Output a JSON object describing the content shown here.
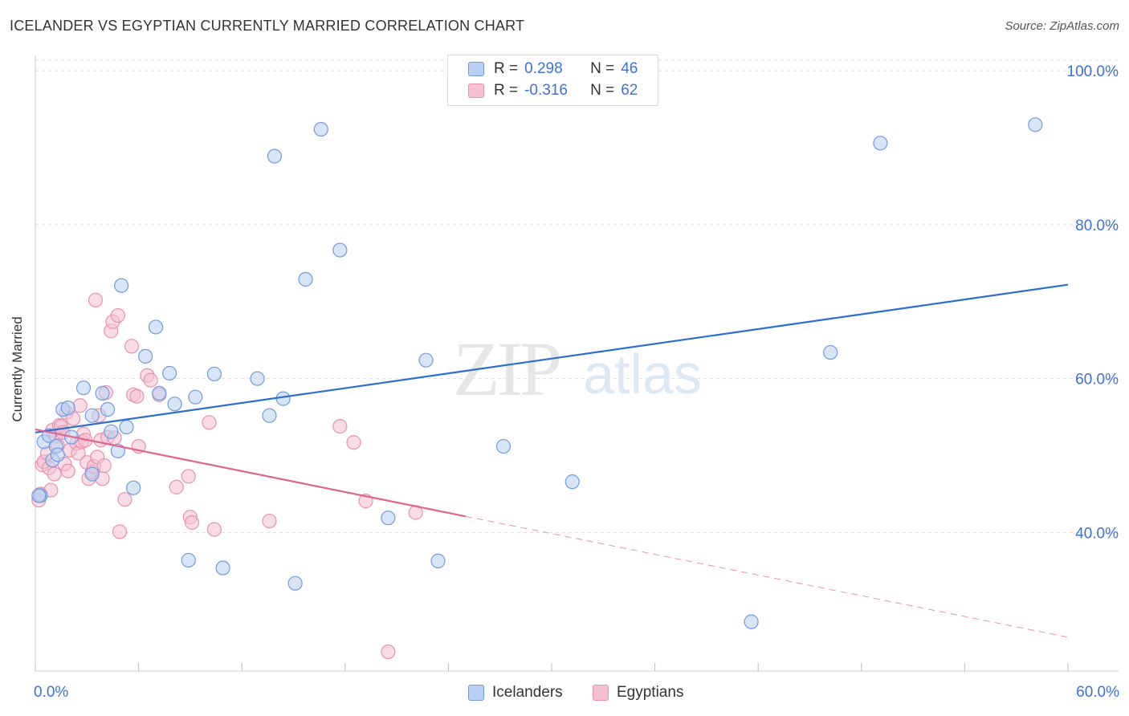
{
  "title": "ICELANDER VS EGYPTIAN CURRENTLY MARRIED CORRELATION CHART",
  "source": "Source: ZipAtlas.com",
  "watermark": {
    "zip": "ZIP",
    "atlas": "atlas"
  },
  "legend_top": [
    {
      "r_label": "R =",
      "r_value": "0.298",
      "n_label": "N =",
      "n_value": "46"
    },
    {
      "r_label": "R =",
      "r_value": "-0.316",
      "n_label": "N =",
      "n_value": "62"
    }
  ],
  "colors": {
    "blue_fill": "#b8d0f4",
    "blue_stroke": "#6f9be0",
    "blue_line": "#2d6fd0",
    "pink_fill": "#f6c0d2",
    "pink_stroke": "#e892b0",
    "pink_line": "#e0648e",
    "tick_text": "#3a72d6",
    "grid": "#dddddd"
  },
  "chart_data": {
    "type": "scatter",
    "title": "ICELANDER VS EGYPTIAN CURRENTLY MARRIED CORRELATION CHART",
    "xlabel": "",
    "ylabel": "Currently Married",
    "xlim": [
      0,
      60
    ],
    "ylim": [
      22,
      102
    ],
    "x_tick_labels": [
      "0.0%",
      "60.0%"
    ],
    "y_ticks": [
      40,
      60,
      80,
      100
    ],
    "y_tick_labels": [
      "40.0%",
      "60.0%",
      "80.0%",
      "100.0%"
    ],
    "legend": [
      "Icelanders",
      "Egyptians"
    ],
    "series": [
      {
        "name": "Icelanders",
        "color": "blue",
        "trend": {
          "x": [
            0,
            60
          ],
          "y": [
            53.0,
            72.2
          ]
        },
        "points": [
          [
            0.3,
            44.8
          ],
          [
            0.5,
            51.8
          ],
          [
            0.8,
            52.6
          ],
          [
            1.0,
            49.4
          ],
          [
            1.2,
            51.2
          ],
          [
            1.3,
            50.1
          ],
          [
            1.6,
            56.0
          ],
          [
            1.9,
            56.2
          ],
          [
            2.1,
            52.4
          ],
          [
            2.8,
            58.8
          ],
          [
            3.3,
            47.6
          ],
          [
            3.3,
            55.2
          ],
          [
            3.9,
            58.1
          ],
          [
            4.2,
            56.0
          ],
          [
            4.4,
            53.1
          ],
          [
            4.8,
            50.6
          ],
          [
            5.0,
            72.1
          ],
          [
            5.3,
            53.7
          ],
          [
            5.7,
            45.8
          ],
          [
            6.4,
            62.9
          ],
          [
            7.0,
            66.7
          ],
          [
            7.2,
            58.1
          ],
          [
            7.8,
            60.7
          ],
          [
            8.1,
            56.7
          ],
          [
            8.9,
            36.4
          ],
          [
            9.3,
            57.6
          ],
          [
            10.4,
            60.6
          ],
          [
            10.9,
            35.4
          ],
          [
            12.9,
            60.0
          ],
          [
            13.6,
            55.2
          ],
          [
            13.9,
            88.9
          ],
          [
            14.4,
            57.4
          ],
          [
            15.1,
            33.4
          ],
          [
            15.7,
            72.9
          ],
          [
            16.6,
            92.4
          ],
          [
            17.7,
            76.7
          ],
          [
            20.5,
            41.9
          ],
          [
            22.7,
            62.4
          ],
          [
            23.4,
            36.3
          ],
          [
            27.2,
            51.2
          ],
          [
            31.2,
            46.6
          ],
          [
            41.6,
            28.4
          ],
          [
            46.2,
            63.4
          ],
          [
            49.1,
            90.6
          ],
          [
            58.1,
            93.0
          ],
          [
            0.2,
            44.8
          ]
        ]
      },
      {
        "name": "Egyptians",
        "color": "pink",
        "trend": {
          "x": [
            0,
            25
          ],
          "y": [
            53.4,
            42.1
          ]
        },
        "trend_dashed": {
          "x": [
            25,
            60
          ],
          "y": [
            42.1,
            26.4
          ]
        },
        "points": [
          [
            0.2,
            44.2
          ],
          [
            0.3,
            45.0
          ],
          [
            0.4,
            48.8
          ],
          [
            0.5,
            49.2
          ],
          [
            0.7,
            50.3
          ],
          [
            0.8,
            48.4
          ],
          [
            0.9,
            45.5
          ],
          [
            1.0,
            53.3
          ],
          [
            1.1,
            47.6
          ],
          [
            1.2,
            52.5
          ],
          [
            1.3,
            51.3
          ],
          [
            1.4,
            53.9
          ],
          [
            1.5,
            53.8
          ],
          [
            1.6,
            53.0
          ],
          [
            1.7,
            48.9
          ],
          [
            1.8,
            55.6
          ],
          [
            1.9,
            48.0
          ],
          [
            2.0,
            50.7
          ],
          [
            2.2,
            54.8
          ],
          [
            2.4,
            51.6
          ],
          [
            2.5,
            50.3
          ],
          [
            2.6,
            56.5
          ],
          [
            2.7,
            51.8
          ],
          [
            2.8,
            52.8
          ],
          [
            2.9,
            52.0
          ],
          [
            3.0,
            49.1
          ],
          [
            3.1,
            47.0
          ],
          [
            3.3,
            47.9
          ],
          [
            3.4,
            48.6
          ],
          [
            3.5,
            70.2
          ],
          [
            3.6,
            49.8
          ],
          [
            3.7,
            55.2
          ],
          [
            3.8,
            52.0
          ],
          [
            3.9,
            47.0
          ],
          [
            4.0,
            48.7
          ],
          [
            4.1,
            58.2
          ],
          [
            4.2,
            52.4
          ],
          [
            4.4,
            66.2
          ],
          [
            4.5,
            67.4
          ],
          [
            4.6,
            52.3
          ],
          [
            4.8,
            68.2
          ],
          [
            4.9,
            40.1
          ],
          [
            5.2,
            44.3
          ],
          [
            5.6,
            64.2
          ],
          [
            5.7,
            57.9
          ],
          [
            5.9,
            57.7
          ],
          [
            6.0,
            51.2
          ],
          [
            6.5,
            60.4
          ],
          [
            6.7,
            59.8
          ],
          [
            7.2,
            57.9
          ],
          [
            8.2,
            45.9
          ],
          [
            8.9,
            47.3
          ],
          [
            9.0,
            42.0
          ],
          [
            9.1,
            41.3
          ],
          [
            10.1,
            54.3
          ],
          [
            10.4,
            40.4
          ],
          [
            13.6,
            41.5
          ],
          [
            17.7,
            53.8
          ],
          [
            18.5,
            51.7
          ],
          [
            19.2,
            44.1
          ],
          [
            20.5,
            24.5
          ],
          [
            22.1,
            42.6
          ]
        ]
      }
    ]
  }
}
